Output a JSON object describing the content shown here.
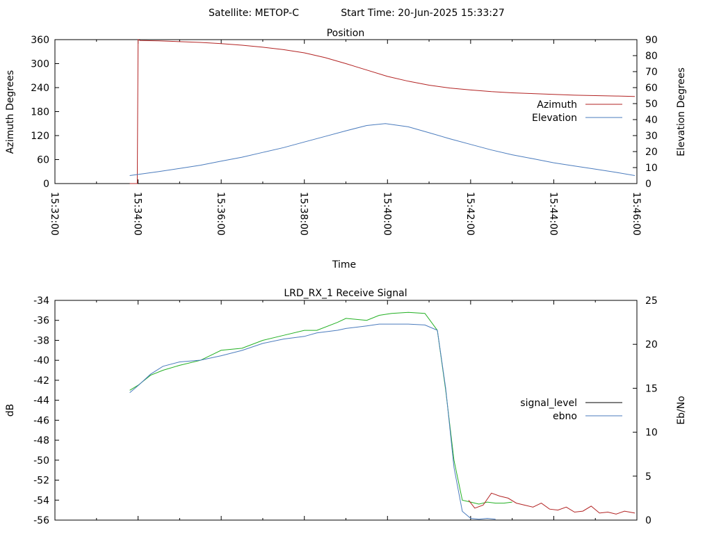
{
  "header": {
    "satellite": "Satellite: METOP-C",
    "start_time": "Start Time: 20-Jun-2025 15:33:27"
  },
  "chart_data": [
    {
      "type": "line",
      "title": "Position",
      "xlabel": "Time",
      "ylabel": "Azimuth Degrees",
      "y2label": "Elevation Degrees",
      "x_ticks": [
        "15:32:00",
        "15:34:00",
        "15:36:00",
        "15:38:00",
        "15:40:00",
        "15:42:00",
        "15:44:00",
        "15:46:00"
      ],
      "xlim_minutes": [
        0,
        14
      ],
      "ylim": [
        0,
        360
      ],
      "y2lim": [
        0,
        90
      ],
      "y_ticks": [
        0,
        60,
        120,
        180,
        240,
        300,
        360
      ],
      "y2_ticks": [
        0,
        10,
        20,
        30,
        40,
        50,
        60,
        70,
        80,
        90
      ],
      "legend_position": "right",
      "series": [
        {
          "name": "Azimuth",
          "axis": "y",
          "color": "#b22222",
          "x_minutes": [
            1.8,
            1.98,
            1.99,
            2.0,
            2.05,
            2.5,
            3.0,
            3.5,
            4.0,
            4.5,
            5.0,
            5.5,
            6.0,
            6.5,
            7.0,
            7.5,
            8.0,
            8.5,
            9.0,
            9.5,
            10.0,
            10.5,
            11.0,
            11.5,
            12.0,
            12.5,
            13.0,
            13.5,
            13.95
          ],
          "values": [
            0,
            0,
            180,
            360,
            358,
            357,
            355,
            353,
            350,
            346,
            341,
            335,
            327,
            315,
            300,
            284,
            268,
            256,
            246,
            239,
            234,
            230,
            227,
            225,
            223,
            221,
            220,
            219,
            218
          ]
        },
        {
          "name": "Elevation",
          "axis": "y2",
          "color": "#4a7bbd",
          "x_minutes": [
            1.8,
            2.5,
            3.0,
            3.5,
            4.0,
            4.5,
            5.0,
            5.5,
            6.0,
            6.5,
            7.0,
            7.5,
            7.95,
            8.5,
            9.0,
            9.5,
            10.0,
            10.5,
            11.0,
            11.5,
            12.0,
            12.5,
            13.0,
            13.5,
            13.95
          ],
          "values": [
            5,
            7.5,
            9.5,
            11.5,
            14,
            16.5,
            19.5,
            22.5,
            26,
            29.5,
            33,
            36.3,
            37.5,
            35.5,
            31.8,
            28,
            24.5,
            21,
            18,
            15.5,
            13,
            11,
            9,
            7,
            5
          ]
        }
      ]
    },
    {
      "type": "line",
      "title": "LRD_RX_1 Receive Signal",
      "xlabel": "",
      "ylabel": "dB",
      "y2label": "Eb/No",
      "xlim_minutes": [
        0,
        14
      ],
      "ylim": [
        -56,
        -34
      ],
      "y2lim": [
        0,
        25
      ],
      "y_ticks": [
        -56,
        -54,
        -52,
        -50,
        -48,
        -46,
        -44,
        -42,
        -40,
        -38,
        -36,
        -34
      ],
      "y2_ticks": [
        0,
        5,
        10,
        15,
        20,
        25
      ],
      "legend_position": "right",
      "series": [
        {
          "name": "signal_level",
          "axis": "y",
          "color": "#22b022",
          "x_minutes": [
            1.8,
            2.0,
            2.3,
            2.6,
            3.0,
            3.5,
            4.0,
            4.5,
            5.0,
            5.5,
            6.0,
            6.3,
            6.8,
            7.0,
            7.5,
            7.8,
            8.1,
            8.5,
            8.9,
            9.2,
            9.4,
            9.6,
            9.8,
            10.0,
            10.2,
            10.4,
            10.6,
            10.8,
            11.0
          ],
          "values": [
            -43,
            -42.5,
            -41.5,
            -41,
            -40.5,
            -40,
            -39,
            -38.8,
            -38,
            -37.5,
            -37,
            -37,
            -36.2,
            -35.8,
            -36,
            -35.5,
            -35.3,
            -35.2,
            -35.3,
            -37,
            -43,
            -50,
            -54,
            -54.2,
            -54.4,
            -54.2,
            -54.3,
            -54.3,
            -54.2
          ]
        },
        {
          "name": "ebno",
          "axis": "y2",
          "color": "#4a7bbd",
          "x_minutes": [
            1.8,
            2.0,
            2.3,
            2.6,
            3.0,
            3.5,
            4.0,
            4.5,
            5.0,
            5.5,
            6.0,
            6.3,
            6.8,
            7.0,
            7.5,
            7.8,
            8.1,
            8.5,
            8.9,
            9.2,
            9.4,
            9.6,
            9.8,
            10.0,
            10.2,
            10.4,
            10.6
          ],
          "values": [
            14.5,
            15.3,
            16.6,
            17.5,
            18,
            18.2,
            18.7,
            19.3,
            20.1,
            20.6,
            20.9,
            21.3,
            21.6,
            21.8,
            22.1,
            22.3,
            22.3,
            22.3,
            22.2,
            21.6,
            15,
            6,
            1,
            0.2,
            0.1,
            0.2,
            0.1
          ]
        },
        {
          "name": "",
          "axis": "y",
          "color": "#b22222",
          "x_minutes": [
            9.95,
            10.1,
            10.3,
            10.5,
            10.7,
            10.9,
            11.1,
            11.3,
            11.5,
            11.7,
            11.9,
            12.1,
            12.3,
            12.5,
            12.7,
            12.9,
            13.1,
            13.3,
            13.5,
            13.7,
            13.95
          ],
          "values": [
            -54,
            -54.8,
            -54.5,
            -53.3,
            -53.6,
            -53.8,
            -54.3,
            -54.5,
            -54.7,
            -54.3,
            -54.9,
            -55,
            -54.7,
            -55.2,
            -55.1,
            -54.6,
            -55.3,
            -55.2,
            -55.4,
            -55.1,
            -55.3
          ]
        }
      ]
    }
  ]
}
